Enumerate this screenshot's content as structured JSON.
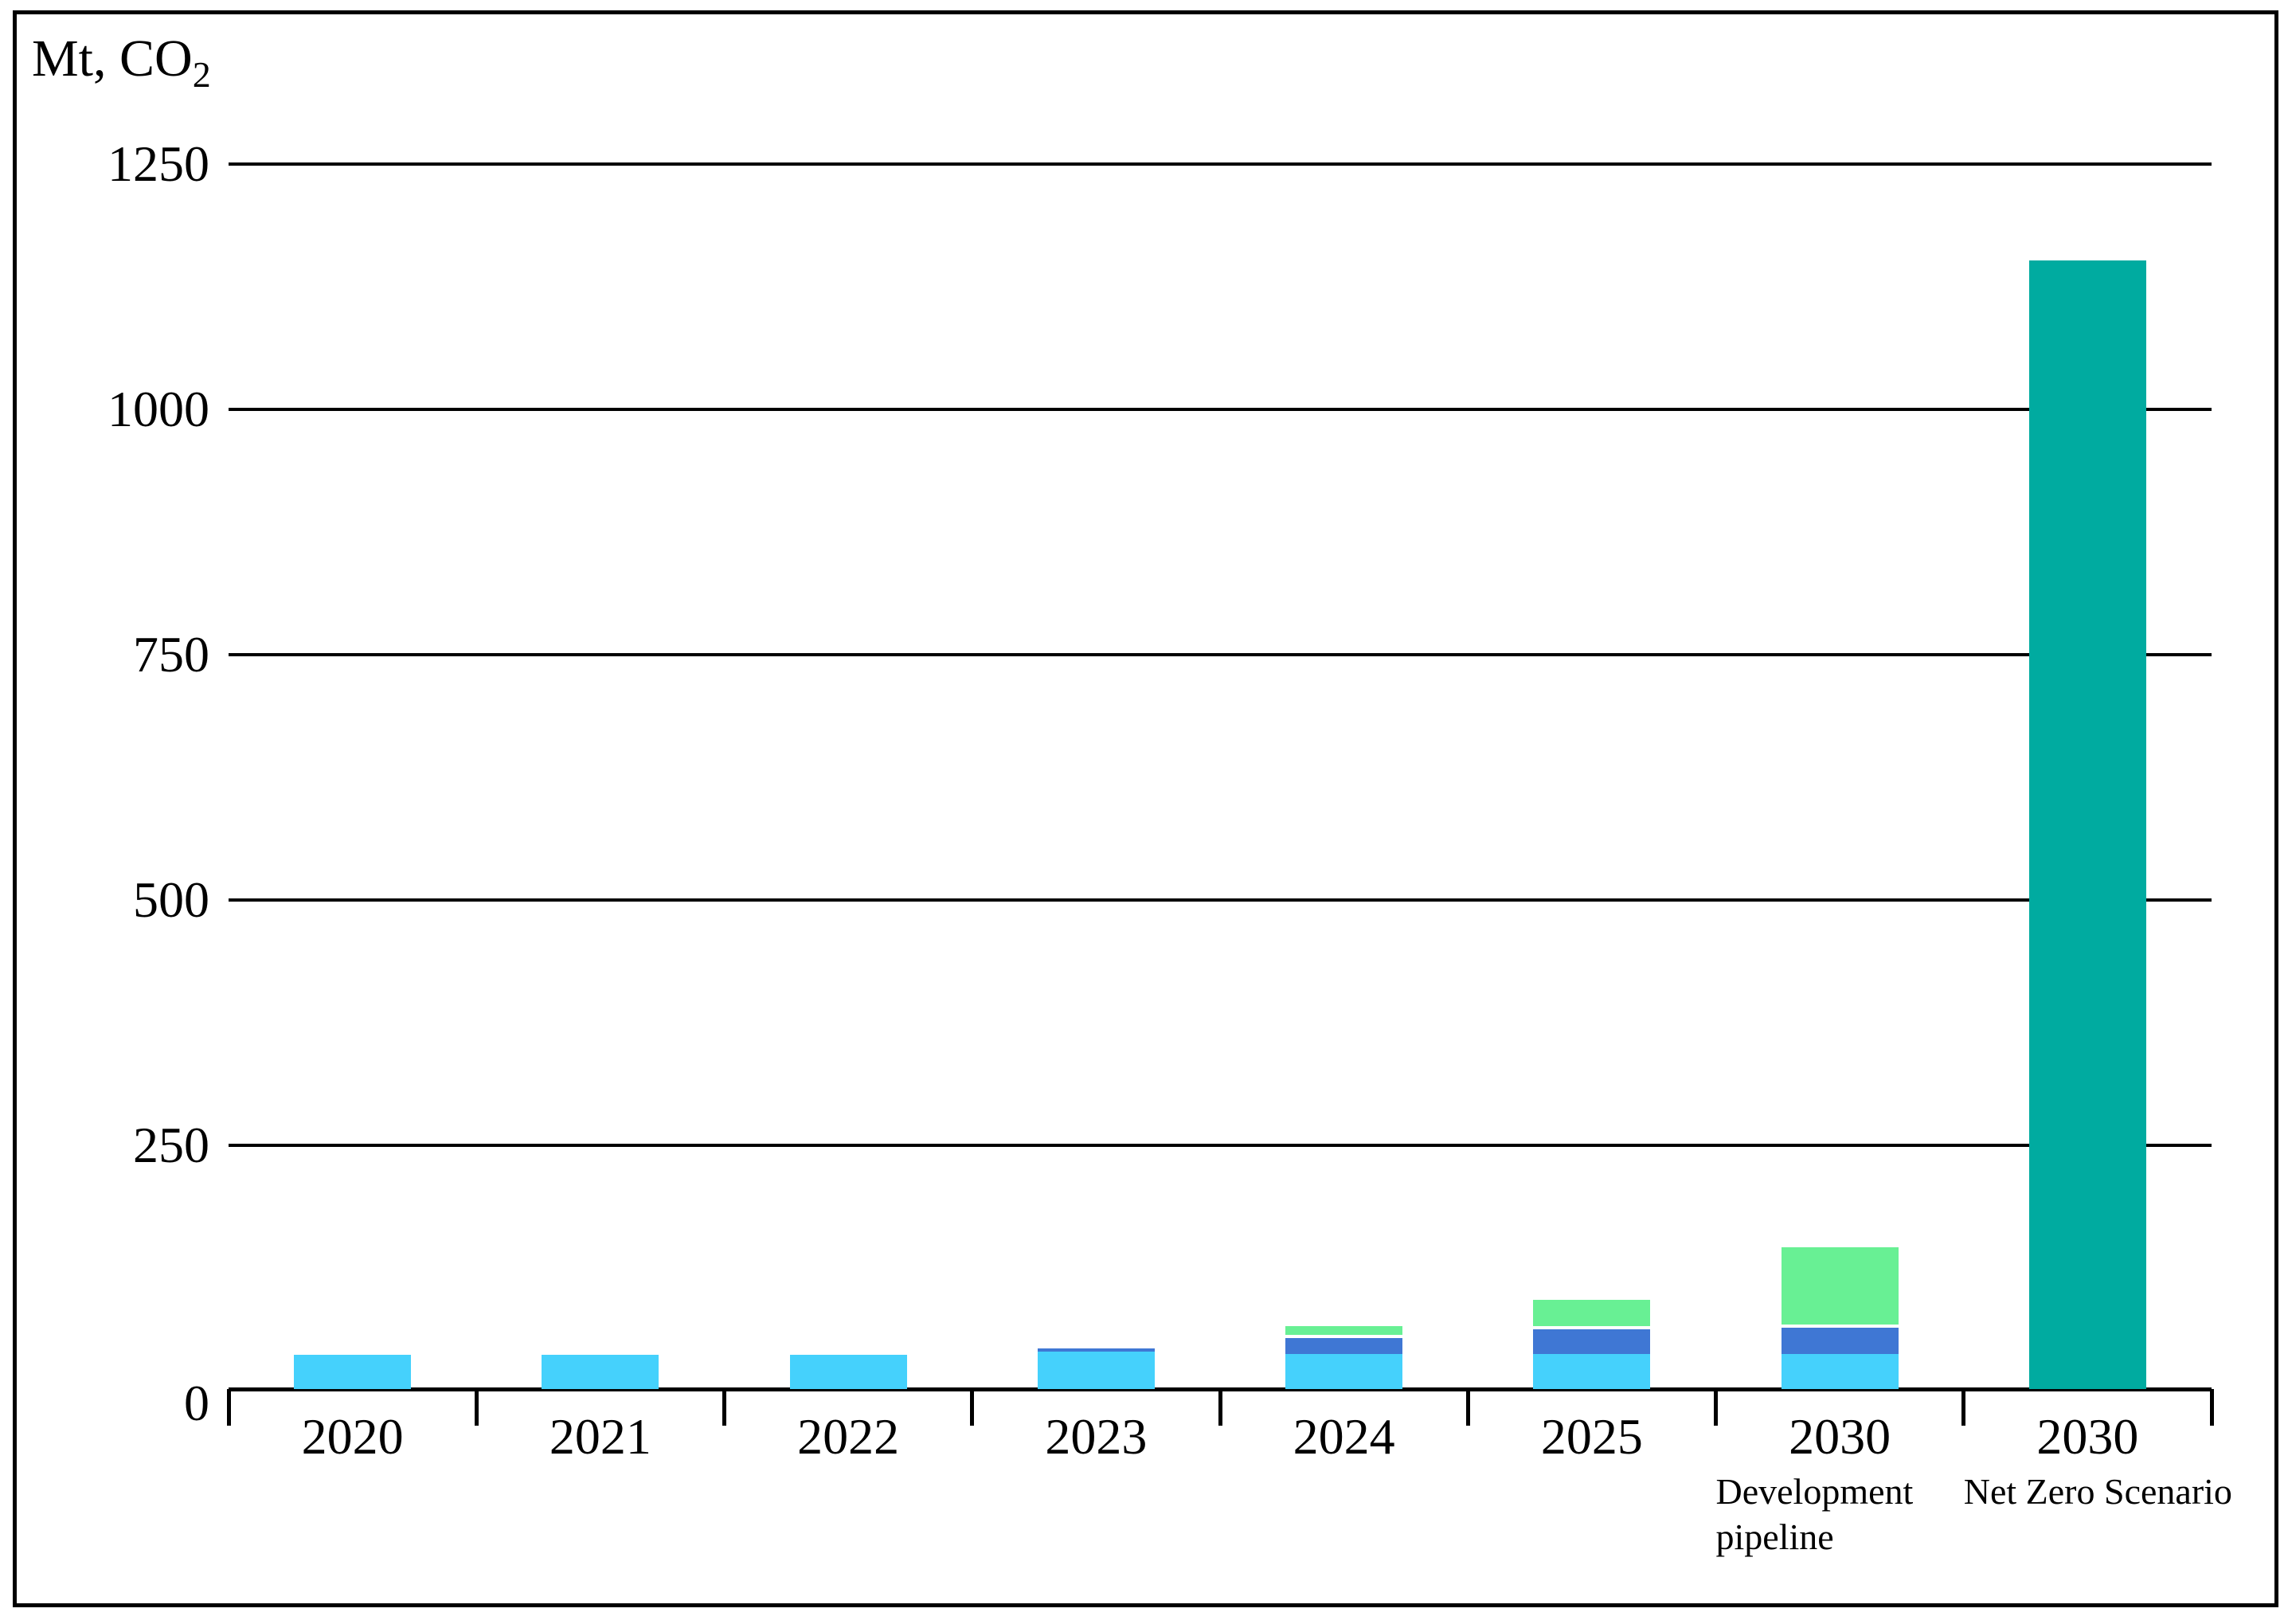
{
  "chart": {
    "unit_prefix": "Mt, CO",
    "unit_subscript": "2"
  },
  "chart_data": {
    "type": "bar",
    "stacked": true,
    "title": "",
    "unit_label": "Mt, CO2",
    "categories": [
      "2020",
      "2021",
      "2022",
      "2023",
      "2024",
      "2025",
      "2030",
      "2030"
    ],
    "category_sublabel_lines": [
      [],
      [],
      [],
      [],
      [],
      [],
      [
        "Development",
        "pipeline"
      ],
      [
        "Net Zero Scenario"
      ]
    ],
    "series": [
      {
        "name": "light-blue-segment",
        "color": "#45D1FC",
        "values": [
          35,
          35,
          35,
          38,
          36,
          36,
          36,
          0
        ]
      },
      {
        "name": "blue-segment",
        "color": "#3F77D4",
        "values": [
          0,
          0,
          0,
          7,
          19,
          28,
          30,
          0
        ]
      },
      {
        "name": "green-segment",
        "color": "#68F094",
        "values": [
          0,
          0,
          0,
          0,
          12,
          30,
          82,
          0
        ]
      },
      {
        "name": "teal-segment",
        "color": "#00ABA0",
        "values": [
          0,
          0,
          0,
          0,
          0,
          0,
          0,
          1150
        ]
      }
    ],
    "ylim": [
      0,
      1250
    ],
    "yticks": [
      0,
      250,
      500,
      750,
      1000,
      1250
    ],
    "grid": "horizontal",
    "legend": "none",
    "axis_color": "#000000",
    "text_color": "#000000",
    "background_color": "#ffffff"
  }
}
